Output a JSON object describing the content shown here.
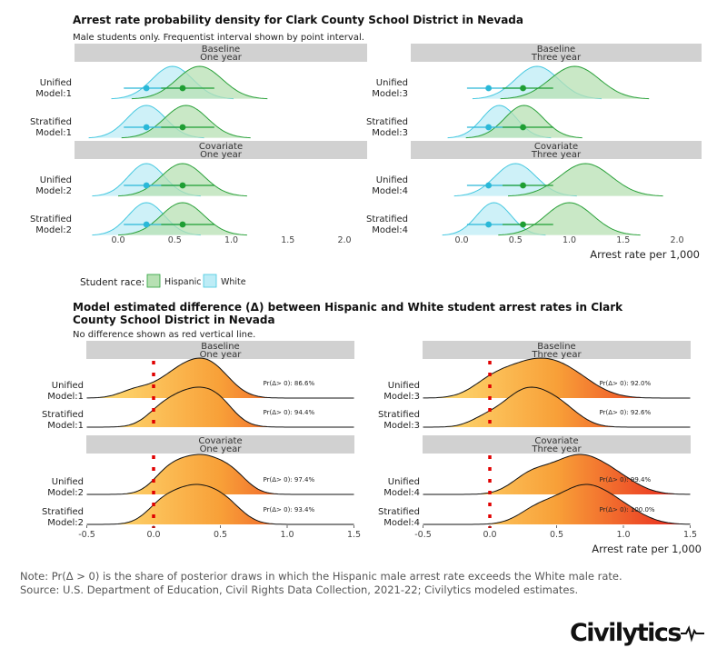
{
  "top": {
    "title": "Arrest rate probability density for Clark County School District in Nevada",
    "subtitle": "Male students only. Frequentist interval shown by point interval.",
    "xlabel": "Arrest rate per 1,000",
    "ticks": [
      "0.0",
      "0.5",
      "1.0",
      "1.5",
      "2.0"
    ]
  },
  "legend": {
    "title": "Student race:",
    "items": [
      {
        "label": "Hispanic",
        "color": "#b7e0b3"
      },
      {
        "label": "White",
        "color": "#bdecf6"
      }
    ]
  },
  "bottom": {
    "title_line1": "Model estimated difference (Δ) between Hispanic and White student arrest rates in Clark",
    "title_line2": "County School District in Nevada",
    "subtitle": "No difference shown as red vertical line.",
    "xlabel": "Arrest rate per 1,000",
    "ticks": [
      "-0.5",
      "0.0",
      "0.5",
      "1.0",
      "1.5"
    ]
  },
  "colors": {
    "hispanic_fill": "#b7e0b3",
    "hispanic_line": "#2aa13a",
    "hispanic_point": "#1f9e33",
    "white_fill": "#bdecf6",
    "white_line": "#45c8e0",
    "white_point": "#2ab8d8",
    "strip": "#d1d1d1",
    "zero_line": "#e00000",
    "grad_low": "#ffe27a",
    "grad_mid": "#f8a038",
    "grad_high": "#e8201e"
  },
  "chart_data": [
    {
      "type": "area",
      "title": "Arrest rate probability density for Clark County School District in Nevada",
      "xlabel": "Arrest rate per 1,000",
      "xlim": [
        -0.3,
        2.05
      ],
      "panels": [
        {
          "strip": [
            "Baseline",
            "One year"
          ],
          "rows": [
            {
              "label": [
                "Unified",
                "Model:1"
              ],
              "hispanic": {
                "mean": 0.72,
                "sd": 0.2,
                "point": 0.57,
                "ci": [
                  0.38,
                  0.85
                ]
              },
              "white": {
                "mean": 0.48,
                "sd": 0.18,
                "point": 0.25,
                "ci": [
                  0.05,
                  0.6
                ]
              }
            },
            {
              "label": [
                "Stratified",
                "Model:1"
              ],
              "hispanic": {
                "mean": 0.6,
                "sd": 0.19,
                "point": 0.57,
                "ci": [
                  0.38,
                  0.85
                ]
              },
              "white": {
                "mean": 0.25,
                "sd": 0.17,
                "point": 0.25,
                "ci": [
                  0.05,
                  0.6
                ]
              }
            }
          ]
        },
        {
          "strip": [
            "Baseline",
            "Three year"
          ],
          "rows": [
            {
              "label": [
                "Unified",
                "Model:3"
              ],
              "hispanic": {
                "mean": 1.05,
                "sd": 0.23,
                "point": 0.57,
                "ci": [
                  0.38,
                  0.85
                ]
              },
              "white": {
                "mean": 0.7,
                "sd": 0.2,
                "point": 0.25,
                "ci": [
                  0.05,
                  0.6
                ]
              }
            },
            {
              "label": [
                "Stratified",
                "Model:3"
              ],
              "hispanic": {
                "mean": 0.58,
                "sd": 0.18,
                "point": 0.57,
                "ci": [
                  0.38,
                  0.85
                ]
              },
              "white": {
                "mean": 0.35,
                "sd": 0.16,
                "point": 0.25,
                "ci": [
                  0.05,
                  0.6
                ]
              }
            }
          ]
        },
        {
          "strip": [
            "Covariate",
            "One year"
          ],
          "rows": [
            {
              "label": [
                "Unified",
                "Model:2"
              ],
              "hispanic": {
                "mean": 0.57,
                "sd": 0.19,
                "point": 0.57,
                "ci": [
                  0.38,
                  0.85
                ]
              },
              "white": {
                "mean": 0.25,
                "sd": 0.16,
                "point": 0.25,
                "ci": [
                  0.05,
                  0.6
                ]
              }
            },
            {
              "label": [
                "Stratified",
                "Model:2"
              ],
              "hispanic": {
                "mean": 0.57,
                "sd": 0.19,
                "point": 0.57,
                "ci": [
                  0.38,
                  0.85
                ]
              },
              "white": {
                "mean": 0.25,
                "sd": 0.16,
                "point": 0.25,
                "ci": [
                  0.05,
                  0.6
                ]
              }
            }
          ]
        },
        {
          "strip": [
            "Covariate",
            "Three year"
          ],
          "rows": [
            {
              "label": [
                "Unified",
                "Model:4"
              ],
              "hispanic": {
                "mean": 1.15,
                "sd": 0.24,
                "point": 0.57,
                "ci": [
                  0.38,
                  0.85
                ]
              },
              "white": {
                "mean": 0.5,
                "sd": 0.19,
                "point": 0.25,
                "ci": [
                  0.05,
                  0.6
                ]
              }
            },
            {
              "label": [
                "Stratified",
                "Model:4"
              ],
              "hispanic": {
                "mean": 1.0,
                "sd": 0.22,
                "point": 0.57,
                "ci": [
                  0.38,
                  0.85
                ]
              },
              "white": {
                "mean": 0.3,
                "sd": 0.16,
                "point": 0.25,
                "ci": [
                  0.05,
                  0.6
                ]
              }
            }
          ]
        }
      ]
    },
    {
      "type": "area",
      "title": "Model estimated difference (Δ) between Hispanic and White student arrest rates in Clark County School District in Nevada",
      "xlabel": "Arrest rate per 1,000",
      "xlim": [
        -0.5,
        1.5
      ],
      "reference_x": 0.0,
      "panels": [
        {
          "strip": [
            "Baseline",
            "One year"
          ],
          "rows": [
            {
              "label": [
                "Unified",
                "Model:1"
              ],
              "prob": "Pr(Δ> 0): 86.6%",
              "peaks": [
                [
                  0.25,
                  0.14,
                  1.0
                ],
                [
                  0.45,
                  0.1,
                  0.55
                ],
                [
                  -0.15,
                  0.08,
                  0.2
                ]
              ]
            },
            {
              "label": [
                "Stratified",
                "Model:1"
              ],
              "prob": "Pr(Δ> 0): 94.4%",
              "peaks": [
                [
                  0.3,
                  0.13,
                  1.0
                ],
                [
                  0.05,
                  0.08,
                  0.25
                ],
                [
                  0.5,
                  0.08,
                  0.3
                ]
              ]
            }
          ]
        },
        {
          "strip": [
            "Baseline",
            "Three year"
          ],
          "rows": [
            {
              "label": [
                "Unified",
                "Model:3"
              ],
              "prob": "Pr(Δ> 0): 92.0%",
              "peaks": [
                [
                  0.3,
                  0.16,
                  1.0
                ],
                [
                  0.6,
                  0.14,
                  0.55
                ],
                [
                  0.0,
                  0.1,
                  0.3
                ]
              ]
            },
            {
              "label": [
                "Stratified",
                "Model:3"
              ],
              "prob": "Pr(Δ> 0): 92.6%",
              "peaks": [
                [
                  0.28,
                  0.13,
                  1.0
                ],
                [
                  0.55,
                  0.1,
                  0.35
                ],
                [
                  -0.05,
                  0.08,
                  0.15
                ]
              ]
            }
          ]
        },
        {
          "strip": [
            "Covariate",
            "One year"
          ],
          "rows": [
            {
              "label": [
                "Unified",
                "Model:2"
              ],
              "prob": "Pr(Δ> 0): 97.4%",
              "peaks": [
                [
                  0.35,
                  0.13,
                  1.0
                ],
                [
                  0.1,
                  0.08,
                  0.35
                ],
                [
                  0.6,
                  0.08,
                  0.3
                ]
              ]
            },
            {
              "label": [
                "Stratified",
                "Model:2"
              ],
              "prob": "Pr(Δ> 0): 93.4%",
              "peaks": [
                [
                  0.3,
                  0.13,
                  1.0
                ],
                [
                  0.05,
                  0.08,
                  0.3
                ],
                [
                  0.55,
                  0.09,
                  0.35
                ]
              ]
            }
          ]
        },
        {
          "strip": [
            "Covariate",
            "Three year"
          ],
          "rows": [
            {
              "label": [
                "Unified",
                "Model:4"
              ],
              "prob": "Pr(Δ> 0): 99.4%",
              "peaks": [
                [
                  0.65,
                  0.14,
                  1.0
                ],
                [
                  0.3,
                  0.1,
                  0.45
                ],
                [
                  0.95,
                  0.12,
                  0.35
                ]
              ]
            },
            {
              "label": [
                "Stratified",
                "Model:4"
              ],
              "prob": "Pr(Δ> 0): 100.0%",
              "peaks": [
                [
                  0.7,
                  0.14,
                  1.0
                ],
                [
                  0.35,
                  0.1,
                  0.35
                ],
                [
                  1.0,
                  0.12,
                  0.3
                ]
              ]
            }
          ]
        }
      ]
    }
  ],
  "note": {
    "line1": "Note: Pr(Δ > 0) is the share of posterior draws in which the Hispanic male arrest rate exceeds the White male rate.",
    "line2": "Source: U.S. Department of Education, Civil Rights Data Collection, 2021-22; Civilytics modeled estimates."
  },
  "logo": {
    "text": "Civilytics"
  }
}
